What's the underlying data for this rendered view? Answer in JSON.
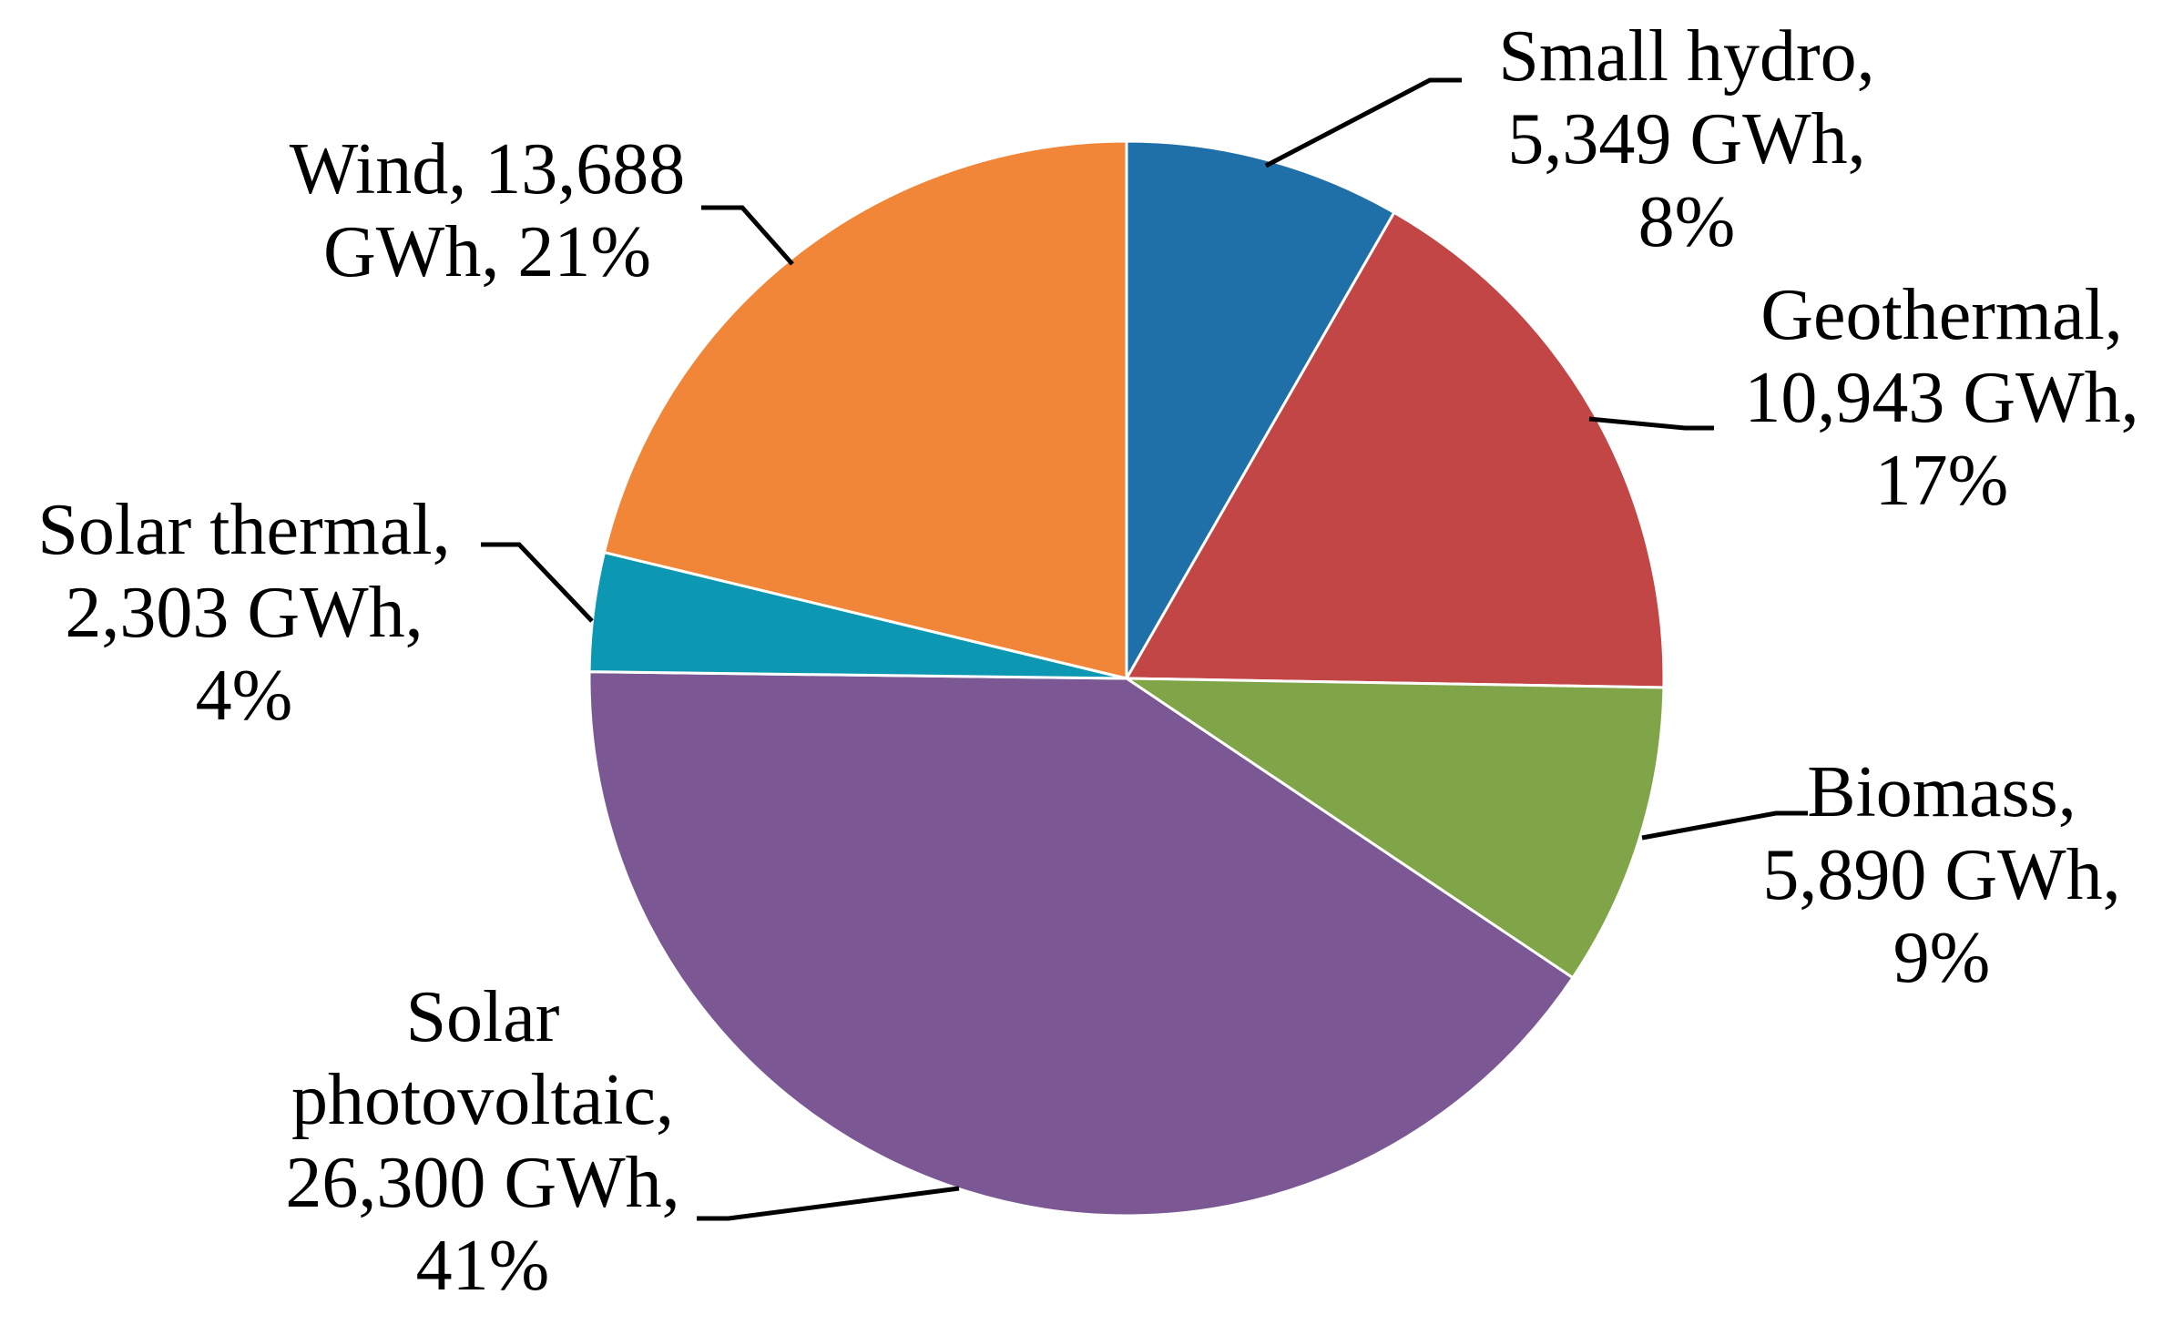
{
  "chart_data": {
    "type": "pie",
    "title": "",
    "unit": "GWh",
    "slices": [
      {
        "name": "Small hydro",
        "value": 5349,
        "percent": 8,
        "color": "#1f6fa8",
        "label_lines": [
          "Small hydro,",
          "5,349 GWh,",
          "8%"
        ]
      },
      {
        "name": "Geothermal",
        "value": 10943,
        "percent": 17,
        "color": "#c24645",
        "label_lines": [
          "Geothermal,",
          "10,943 GWh,",
          "17%"
        ]
      },
      {
        "name": "Biomass",
        "value": 5890,
        "percent": 9,
        "color": "#7fa548",
        "label_lines": [
          "Biomass,",
          "5,890 GWh,",
          "9%"
        ]
      },
      {
        "name": "Solar photovoltaic",
        "value": 26300,
        "percent": 41,
        "color": "#7b5893",
        "label_lines": [
          "Solar",
          "photovoltaic,",
          "26,300 GWh,",
          "41%"
        ]
      },
      {
        "name": "Solar thermal",
        "value": 2303,
        "percent": 4,
        "color": "#0c98b2",
        "label_lines": [
          "Solar thermal,",
          "2,303 GWh,",
          "4%"
        ]
      },
      {
        "name": "Wind",
        "value": 13688,
        "percent": 21,
        "color": "#f18639",
        "label_lines": [
          "Wind, 13,688",
          "GWh, 21%"
        ]
      }
    ]
  }
}
